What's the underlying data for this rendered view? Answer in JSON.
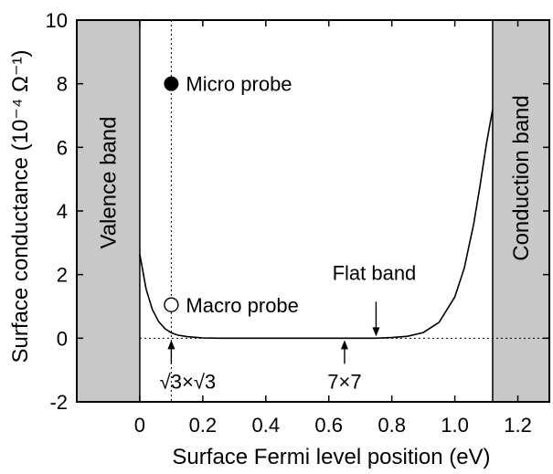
{
  "chart_data": {
    "type": "line",
    "title": "",
    "xlabel": "Surface Fermi level position (eV)",
    "ylabel": "Surface conductance (10⁻⁴ Ω⁻¹)",
    "xlim": [
      -0.2,
      1.3
    ],
    "ylim": [
      -2,
      10
    ],
    "x_ticks": [
      0,
      0.2,
      0.4,
      0.6,
      0.8,
      1.0,
      1.2
    ],
    "x_tick_labels": [
      "0",
      "0.2",
      "0.4",
      "0.6",
      "0.8",
      "1.0",
      "1.2"
    ],
    "y_ticks": [
      -2,
      0,
      2,
      4,
      6,
      8,
      10
    ],
    "y_tick_labels": [
      "-2",
      "0",
      "2",
      "4",
      "6",
      "8",
      "10"
    ],
    "grid": false,
    "shaded_regions": [
      {
        "label": "Valence band",
        "x_range": [
          -0.2,
          0.0
        ],
        "color": "#c8c8c8"
      },
      {
        "label": "Conduction band",
        "x_range": [
          1.12,
          1.3
        ],
        "color": "#c8c8c8"
      }
    ],
    "series": [
      {
        "style": "solid-line",
        "x": [
          0.0,
          0.02,
          0.04,
          0.06,
          0.08,
          0.1,
          0.12,
          0.15,
          0.2,
          0.25,
          0.3,
          0.4,
          0.5,
          0.6,
          0.7,
          0.75,
          0.8,
          0.85,
          0.9,
          0.95,
          1.0,
          1.03,
          1.06,
          1.08,
          1.1,
          1.12
        ],
        "y": [
          2.65,
          1.55,
          0.9,
          0.52,
          0.3,
          0.17,
          0.1,
          0.05,
          0.01,
          0.0,
          0.0,
          0.0,
          0.0,
          0.0,
          0.0,
          0.0,
          0.02,
          0.06,
          0.18,
          0.5,
          1.3,
          2.2,
          3.6,
          4.8,
          6.1,
          7.2
        ]
      },
      {
        "name": "Micro probe",
        "style": "filled-circle",
        "x": [
          0.1
        ],
        "y": [
          8.0
        ]
      },
      {
        "name": "Macro probe",
        "style": "open-circle",
        "x": [
          0.1
        ],
        "y": [
          1.05
        ]
      }
    ],
    "reference_lines": {
      "vertical_dotted_x": 0.1,
      "horizontal_dotted_y": 0
    },
    "annotations": [
      {
        "text": "Micro probe",
        "points_to": [
          0.1,
          8.0
        ]
      },
      {
        "text": "Macro probe",
        "points_to": [
          0.1,
          1.05
        ]
      },
      {
        "text": "Flat band",
        "arrow_to": [
          0.75,
          0
        ]
      },
      {
        "text": "√3×√3",
        "arrow_to": [
          0.1,
          0
        ]
      },
      {
        "text": "7×7",
        "arrow_to": [
          0.65,
          0
        ]
      }
    ]
  }
}
